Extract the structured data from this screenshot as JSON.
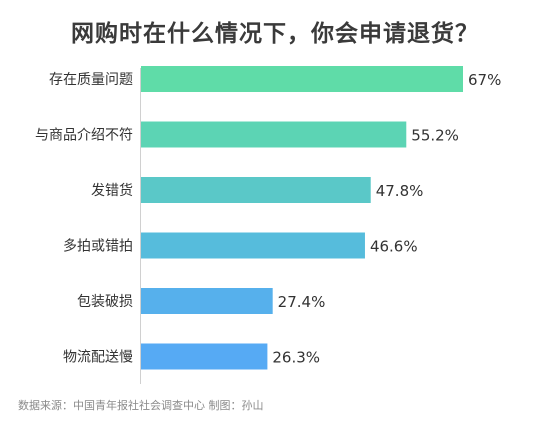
{
  "chart_data": {
    "type": "bar",
    "orientation": "horizontal",
    "title": "网购时在什么情况下，你会申请退货？",
    "categories": [
      "存在质量问题",
      "与商品介绍不符",
      "发错货",
      "多拍或错拍",
      "包装破损",
      "物流配送慢"
    ],
    "values": [
      67,
      55.2,
      47.8,
      46.6,
      27.4,
      26.3
    ],
    "value_labels": [
      "67%",
      "55.2%",
      "47.8%",
      "46.6%",
      "27.4%",
      "26.3%"
    ],
    "colors": [
      "#5fdca8",
      "#5cd4b4",
      "#5ac8c8",
      "#56bcdc",
      "#56b0ec",
      "#56aaf4"
    ],
    "xlabel": "",
    "ylabel": "",
    "xlim": [
      0,
      67
    ],
    "grid": false,
    "legend": "none"
  },
  "footer": {
    "source": "数据来源：中国青年报社社会调查中心 制图：孙山"
  }
}
